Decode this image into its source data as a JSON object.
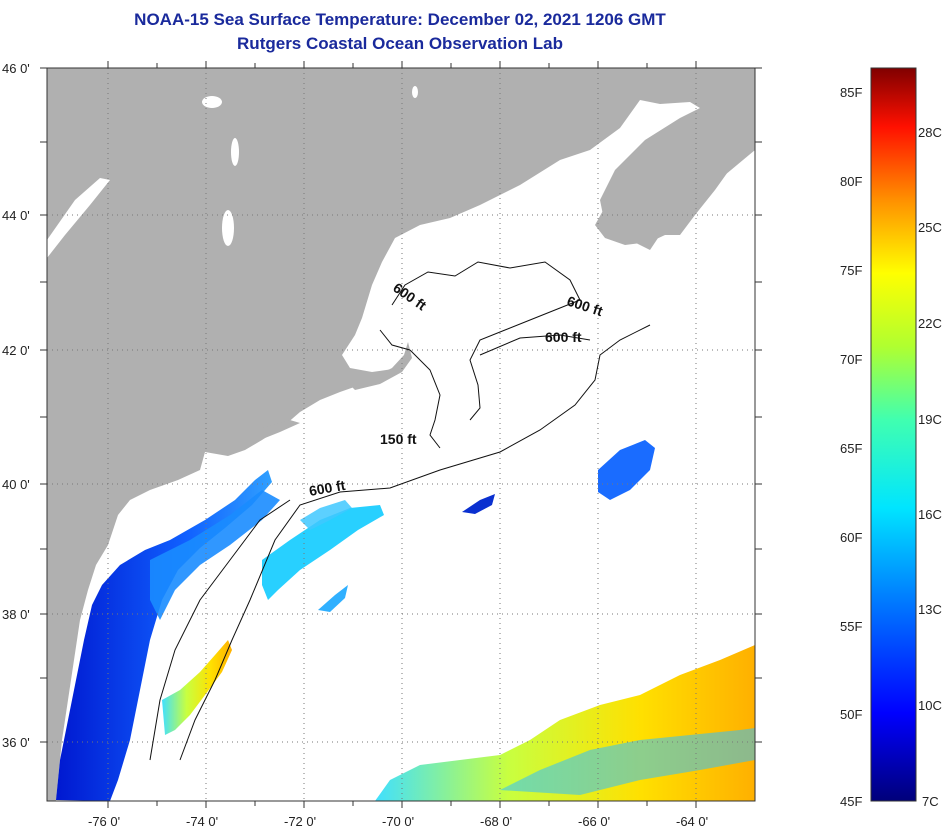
{
  "header": {
    "title": "NOAA-15 Sea Surface Temperature:  December 02, 2021 1206 GMT",
    "subtitle": "Rutgers Coastal Ocean Observation Lab"
  },
  "map": {
    "lat_ticks": [
      "46 0'",
      "44 0'",
      "42 0'",
      "40 0'",
      "38 0'",
      "36 0'"
    ],
    "lon_ticks": [
      "-76 0'",
      "-74 0'",
      "-72 0'",
      "-70 0'",
      "-68 0'",
      "-66 0'",
      "-64 0'"
    ],
    "contour_labels": [
      "600 ft",
      "600 ft",
      "600 ft",
      "150 ft",
      "600 ft"
    ]
  },
  "colorbar": {
    "fahrenheit": [
      "85F",
      "80F",
      "75F",
      "70F",
      "65F",
      "60F",
      "55F",
      "50F",
      "45F"
    ],
    "celsius": [
      "28C",
      "25C",
      "22C",
      "19C",
      "16C",
      "13C",
      "10C",
      "7C"
    ]
  },
  "colors": {
    "land": "#b0b0b0",
    "water": "#ffffff",
    "title": "#1a2a9c"
  }
}
